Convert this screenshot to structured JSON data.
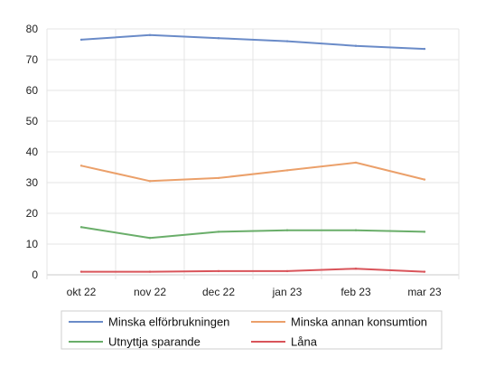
{
  "chart_data": {
    "type": "line",
    "title": "",
    "xlabel": "",
    "ylabel": "",
    "categories": [
      "okt 22",
      "nov 22",
      "dec 22",
      "jan 23",
      "feb 23",
      "mar 23"
    ],
    "ylim": [
      0,
      80
    ],
    "yticks": [
      0,
      10,
      20,
      30,
      40,
      50,
      60,
      70,
      80
    ],
    "grid": true,
    "legend_position": "bottom",
    "series": [
      {
        "name": "Minska elförbrukningen",
        "color": "#6a8bc8",
        "values": [
          76.5,
          78,
          77,
          76,
          74.5,
          73.5
        ]
      },
      {
        "name": "Minska annan konsumtion",
        "color": "#eba06a",
        "values": [
          35.5,
          30.5,
          31.5,
          34,
          36.5,
          31
        ]
      },
      {
        "name": "Utnyttja sparande",
        "color": "#6aae6a",
        "values": [
          15.5,
          12,
          14,
          14.5,
          14.5,
          14
        ]
      },
      {
        "name": "Låna",
        "color": "#d9545a",
        "values": [
          1,
          1,
          1.2,
          1.2,
          2,
          1
        ]
      }
    ]
  }
}
